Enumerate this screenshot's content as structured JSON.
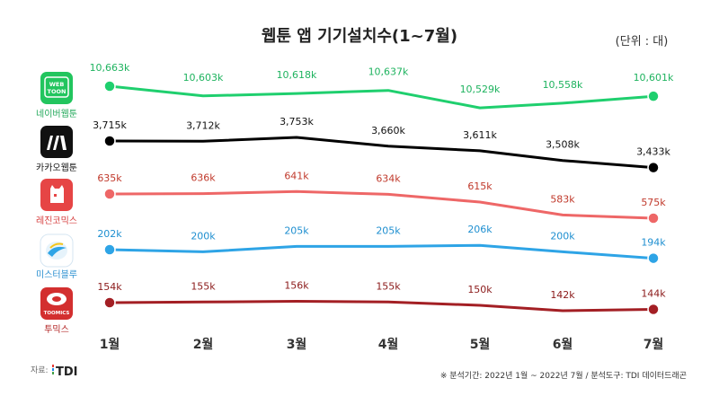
{
  "title": "웹툰 앱 기기설치수(1~7월)",
  "unit_note": "(단위 : 대)",
  "source_label": "자료:",
  "source_logo_text": "TDI",
  "footer_note": "※ 분석기간: 2022년 1월 ~ 2022년 7월  / 분석도구: TDI 데이터드래곤",
  "apps": [
    {
      "name": "네이버웹툰",
      "icon": "webtoon-logo-icon",
      "icon_text": "WEB TOON",
      "color": "#22c55e"
    },
    {
      "name": "카카오웹툰",
      "icon": "kakao-webtoon-logo-icon",
      "icon_text": "",
      "color": "#111111"
    },
    {
      "name": "레진코믹스",
      "icon": "lezhin-logo-icon",
      "icon_text": "",
      "color": "#e04a4a"
    },
    {
      "name": "미스터블루",
      "icon": "mrblue-logo-icon",
      "icon_text": "",
      "color": "#2ea4e6"
    },
    {
      "name": "투믹스",
      "icon": "toomics-logo-icon",
      "icon_text": "TOOMICS",
      "color": "#b22222"
    }
  ],
  "chart_data": {
    "type": "line",
    "categories": [
      "1월",
      "2월",
      "3월",
      "4월",
      "5월",
      "6월",
      "7월"
    ],
    "series": [
      {
        "name": "네이버웹툰",
        "color": "#1fcf6e",
        "label_color": "#1fb35f",
        "values": [
          10663,
          10603,
          10618,
          10637,
          10529,
          10558,
          10601
        ],
        "labels": [
          "10,663k",
          "10,603k",
          "10,618k",
          "10,637k",
          "10,529k",
          "10,558k",
          "10,601k"
        ]
      },
      {
        "name": "카카오웹툰",
        "color": "#000000",
        "label_color": "#111111",
        "values": [
          3715,
          3712,
          3753,
          3660,
          3611,
          3508,
          3433
        ],
        "labels": [
          "3,715k",
          "3,712k",
          "3,753k",
          "3,660k",
          "3,611k",
          "3,508k",
          "3,433k"
        ]
      },
      {
        "name": "레진코믹스",
        "color": "#ee6767",
        "label_color": "#c0392b",
        "values": [
          635,
          636,
          641,
          634,
          615,
          583,
          575
        ],
        "labels": [
          "635k",
          "636k",
          "641k",
          "634k",
          "615k",
          "583k",
          "575k"
        ]
      },
      {
        "name": "미스터블루",
        "color": "#2ea4e6",
        "label_color": "#1f8fd0",
        "values": [
          202,
          200,
          205,
          205,
          206,
          200,
          194
        ],
        "labels": [
          "202k",
          "200k",
          "205k",
          "205k",
          "206k",
          "200k",
          "194k"
        ]
      },
      {
        "name": "투믹스",
        "color": "#a31f24",
        "label_color": "#8b1a1a",
        "values": [
          154,
          155,
          156,
          155,
          150,
          142,
          144
        ],
        "labels": [
          "154k",
          "155k",
          "156k",
          "155k",
          "150k",
          "142k",
          "144k"
        ]
      }
    ],
    "grid": false,
    "legend": "left"
  }
}
